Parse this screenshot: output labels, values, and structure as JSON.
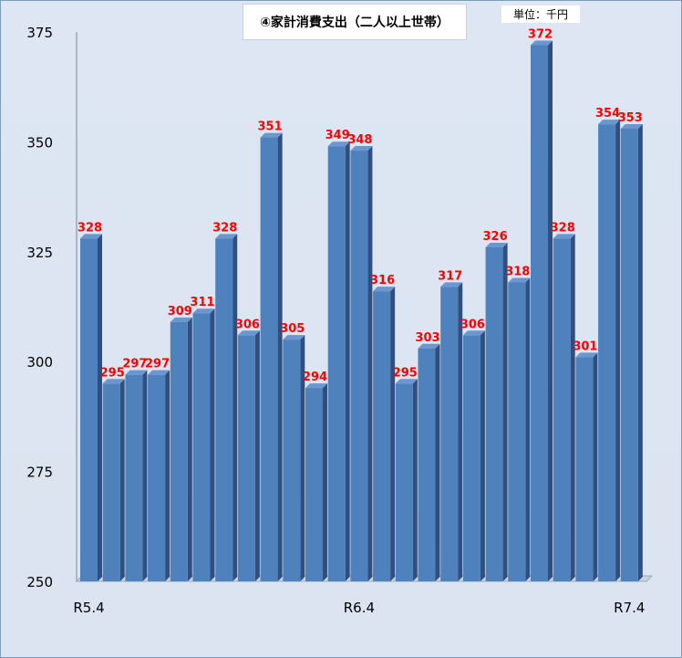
{
  "chart_data": {
    "type": "bar",
    "title": "④家計消費支出（二人以上世帯）",
    "unit": "単位：千円",
    "ylim": [
      250,
      375
    ],
    "yticks": [
      250,
      275,
      300,
      325,
      350,
      375
    ],
    "x_tick_labels": [
      "R5.4",
      "R6.4",
      "R7.4"
    ],
    "x_tick_positions": [
      0,
      12,
      24
    ],
    "values": [
      328,
      295,
      297,
      297,
      309,
      311,
      328,
      306,
      351,
      305,
      294,
      349,
      348,
      316,
      295,
      303,
      317,
      306,
      326,
      318,
      372,
      328,
      301,
      354,
      353
    ],
    "colors": {
      "bar_front": "#4f81bd",
      "bar_side": "#2e4f7f",
      "bar_top": "#6b96cf",
      "label": "#ff0000",
      "background": "#dce6f1"
    },
    "grid": false
  }
}
